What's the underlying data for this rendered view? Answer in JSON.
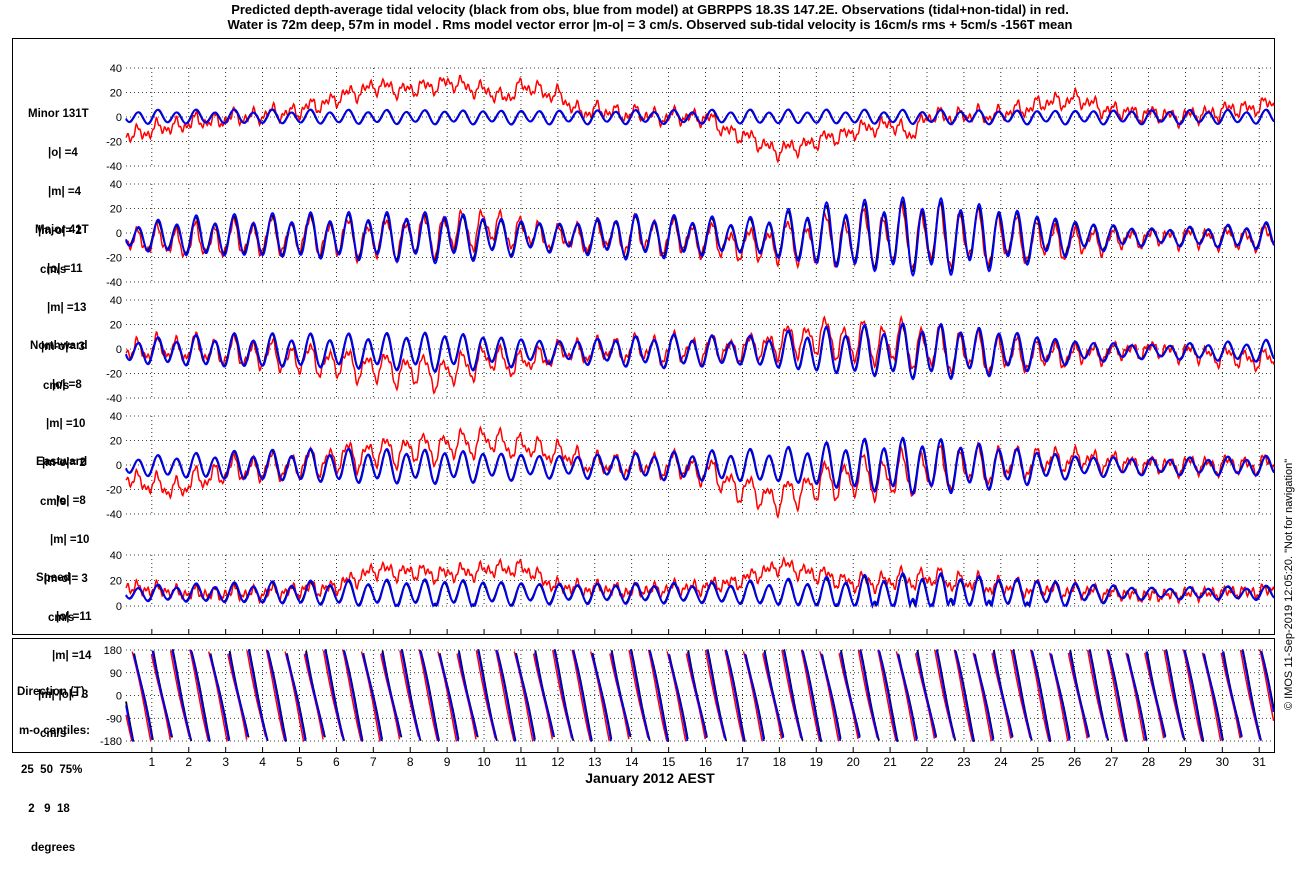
{
  "figure": {
    "title_line1": "Predicted depth-average tidal velocity (black from obs, blue from model) at GBRPPS 18.3S 147.2E. Observations (tidal+non-tidal) in red.",
    "title_line2": "Water is 72m deep, 57m in model . Rms model vector error |m-o| = 3 cm/s. Observed sub-tidal velocity is 16cm/s rms + 5cm/s -156T mean",
    "xlabel": "January 2012 AEST",
    "watermark": "© IMOS 11-Sep-2019 12:05:20. \"Not for navigation\"",
    "colors": {
      "observed": "#ff0000",
      "obs_tidal": "#000000",
      "model": "#0000ff"
    }
  },
  "panels": [
    {
      "id": "minor",
      "label_lines": [
        "Minor 131T",
        "|o| =4",
        "|m| =4",
        "|m-o|= 2",
        "cm/s"
      ]
    },
    {
      "id": "major",
      "label_lines": [
        "Major 41T",
        "|o| =11",
        "|m| =13",
        "|m-o|= 3",
        "cm/s"
      ]
    },
    {
      "id": "north",
      "label_lines": [
        "Northward",
        "|o| =8",
        "|m| =10",
        "|m-o|= 2",
        "cm/s"
      ]
    },
    {
      "id": "east",
      "label_lines": [
        "Eastward",
        "|o| =8",
        "|m| =10",
        "|m-o|= 3",
        "cm/s"
      ]
    },
    {
      "id": "speed",
      "label_lines": [
        "Speed",
        "|o| =11",
        "|m| =14",
        "|m|-|o|= 3",
        "cm/s"
      ]
    },
    {
      "id": "direction",
      "label_lines": [
        "Direction (T)",
        "m-o centiles:",
        "25  50  75%",
        " 2   9  18",
        "degrees"
      ]
    }
  ],
  "chart_data": [
    {
      "type": "line",
      "id": "minor",
      "ylim": [
        -40,
        40
      ],
      "yticks": [
        "-40",
        "-20",
        "0",
        "20",
        "40"
      ],
      "x_label": "January 2012 AEST",
      "xlim": [
        0.3,
        31.4
      ],
      "x_ticks": [
        "1",
        "2",
        "3",
        "4",
        "5",
        "6",
        "7",
        "8",
        "9",
        "10",
        "11",
        "12",
        "13",
        "14",
        "15",
        "16",
        "17",
        "18",
        "19",
        "20",
        "21",
        "22",
        "23",
        "24",
        "25",
        "26",
        "27",
        "28",
        "29",
        "30",
        "31"
      ],
      "tidal": {
        "shape": "semidiurnal",
        "amplitude": [
          [
            0,
            5
          ],
          [
            31,
            5
          ]
        ],
        "bias": 0
      },
      "series": [
        {
          "name": "obs",
          "role": "observed",
          "color": "#ff0000",
          "low_frequency": [
            [
              0.3,
              -15
            ],
            [
              2,
              -5
            ],
            [
              3.5,
              0
            ],
            [
              5,
              5
            ],
            [
              6,
              15
            ],
            [
              7,
              25
            ],
            [
              8,
              22
            ],
            [
              9,
              28
            ],
            [
              10,
              22
            ],
            [
              10.5,
              15
            ],
            [
              11,
              25
            ],
            [
              12,
              18
            ],
            [
              12.5,
              5
            ],
            [
              13,
              5
            ],
            [
              15,
              0
            ],
            [
              16,
              0
            ],
            [
              16.5,
              -10
            ],
            [
              17,
              -15
            ],
            [
              18,
              -28
            ],
            [
              19,
              -20
            ],
            [
              20,
              -12
            ],
            [
              21,
              -5
            ],
            [
              21.5,
              -15
            ],
            [
              22,
              0
            ],
            [
              24,
              2
            ],
            [
              25,
              10
            ],
            [
              26,
              15
            ],
            [
              26.5,
              10
            ],
            [
              27,
              5
            ],
            [
              29,
              0
            ],
            [
              30,
              5
            ],
            [
              31.4,
              10
            ]
          ]
        },
        {
          "name": "obs_tidal",
          "role": "tidal",
          "color": "#000000",
          "tide_scale": 0.95
        },
        {
          "name": "model",
          "role": "tidal",
          "color": "#0000ff",
          "tide_scale": 1.0
        }
      ]
    },
    {
      "type": "line",
      "id": "major",
      "ylim": [
        -40,
        40
      ],
      "yticks": [
        "-40",
        "-20",
        "0",
        "20",
        "40"
      ],
      "tidal": {
        "shape": "semidiurnal",
        "amplitude": [
          [
            0,
            8
          ],
          [
            2,
            14
          ],
          [
            5,
            16
          ],
          [
            9,
            18
          ],
          [
            12,
            10
          ],
          [
            14,
            16
          ],
          [
            16,
            14
          ],
          [
            17,
            12
          ],
          [
            19,
            22
          ],
          [
            22,
            28
          ],
          [
            24,
            22
          ],
          [
            26,
            12
          ],
          [
            28,
            6
          ],
          [
            30,
            8
          ],
          [
            31.4,
            10
          ]
        ],
        "bias": -3
      },
      "series": [
        {
          "name": "obs",
          "role": "observed",
          "color": "#ff0000",
          "low_frequency": [
            [
              0.3,
              -5
            ],
            [
              2,
              -8
            ],
            [
              5,
              -2
            ],
            [
              7,
              -5
            ],
            [
              9,
              0
            ],
            [
              10,
              5
            ],
            [
              11,
              0
            ],
            [
              12,
              -5
            ],
            [
              14,
              -2
            ],
            [
              16,
              -5
            ],
            [
              17,
              -10
            ],
            [
              18,
              -8
            ],
            [
              20,
              -5
            ],
            [
              22,
              -3
            ],
            [
              24,
              -5
            ],
            [
              26,
              -8
            ],
            [
              28,
              -3
            ],
            [
              31.4,
              -5
            ]
          ]
        },
        {
          "name": "obs_tidal",
          "role": "tidal",
          "color": "#000000",
          "tide_scale": 0.9
        },
        {
          "name": "model",
          "role": "tidal",
          "color": "#0000ff",
          "tide_scale": 1.0
        }
      ]
    },
    {
      "type": "line",
      "id": "north",
      "ylim": [
        -40,
        40
      ],
      "yticks": [
        "-40",
        "-20",
        "0",
        "20",
        "40"
      ],
      "tidal": {
        "shape": "semidiurnal",
        "amplitude": [
          [
            0,
            8
          ],
          [
            3,
            12
          ],
          [
            6,
            12
          ],
          [
            9,
            14
          ],
          [
            12,
            8
          ],
          [
            15,
            12
          ],
          [
            17,
            10
          ],
          [
            19,
            16
          ],
          [
            22,
            20
          ],
          [
            24,
            16
          ],
          [
            26,
            8
          ],
          [
            28,
            5
          ],
          [
            31.4,
            8
          ]
        ],
        "bias": -2
      },
      "series": [
        {
          "name": "obs",
          "role": "observed",
          "color": "#ff0000",
          "low_frequency": [
            [
              0.3,
              0
            ],
            [
              2,
              0
            ],
            [
              5,
              -8
            ],
            [
              7,
              -15
            ],
            [
              9,
              -20
            ],
            [
              10,
              -8
            ],
            [
              11,
              -12
            ],
            [
              12,
              -3
            ],
            [
              14,
              0
            ],
            [
              17,
              0
            ],
            [
              18,
              5
            ],
            [
              19,
              10
            ],
            [
              20,
              5
            ],
            [
              21,
              5
            ],
            [
              22,
              0
            ],
            [
              24,
              -5
            ],
            [
              26,
              -5
            ],
            [
              28,
              0
            ],
            [
              31.4,
              -10
            ]
          ]
        },
        {
          "name": "obs_tidal",
          "role": "tidal",
          "color": "#000000",
          "tide_scale": 0.95
        },
        {
          "name": "model",
          "role": "tidal",
          "color": "#0000ff",
          "tide_scale": 1.0
        }
      ]
    },
    {
      "type": "line",
      "id": "east",
      "ylim": [
        -40,
        40
      ],
      "yticks": [
        "-40",
        "-20",
        "0",
        "20",
        "40"
      ],
      "tidal": {
        "shape": "semidiurnal",
        "amplitude": [
          [
            0,
            6
          ],
          [
            3,
            10
          ],
          [
            6,
            12
          ],
          [
            9,
            12
          ],
          [
            12,
            8
          ],
          [
            15,
            10
          ],
          [
            18,
            12
          ],
          [
            20,
            18
          ],
          [
            22,
            20
          ],
          [
            24,
            15
          ],
          [
            26,
            8
          ],
          [
            28,
            6
          ],
          [
            31.4,
            7
          ]
        ],
        "bias": -1
      },
      "series": [
        {
          "name": "obs",
          "role": "observed",
          "color": "#ff0000",
          "low_frequency": [
            [
              0.3,
              -10
            ],
            [
              1.5,
              -20
            ],
            [
              3,
              -5
            ],
            [
              5,
              0
            ],
            [
              7,
              10
            ],
            [
              9,
              15
            ],
            [
              10,
              20
            ],
            [
              11,
              15
            ],
            [
              12,
              10
            ],
            [
              13,
              0
            ],
            [
              15,
              0
            ],
            [
              16,
              -5
            ],
            [
              17,
              -20
            ],
            [
              18,
              -28
            ],
            [
              19,
              -15
            ],
            [
              20,
              -10
            ],
            [
              21,
              -10
            ],
            [
              22,
              -5
            ],
            [
              24,
              0
            ],
            [
              26,
              5
            ],
            [
              28,
              0
            ],
            [
              31.4,
              0
            ]
          ]
        },
        {
          "name": "obs_tidal",
          "role": "tidal",
          "color": "#000000",
          "tide_scale": 0.95
        },
        {
          "name": "model",
          "role": "tidal",
          "color": "#0000ff",
          "tide_scale": 1.0
        }
      ]
    },
    {
      "type": "line",
      "id": "speed",
      "ylim": [
        0,
        40
      ],
      "yticks": [
        "0",
        "20",
        "40"
      ],
      "tidal": {
        "shape": "semidiurnal",
        "amplitude": [
          [
            0,
            5
          ],
          [
            5,
            8
          ],
          [
            9,
            10
          ],
          [
            12,
            7
          ],
          [
            16,
            7
          ],
          [
            19,
            10
          ],
          [
            22,
            14
          ],
          [
            25,
            10
          ],
          [
            28,
            4
          ],
          [
            31.4,
            5
          ]
        ],
        "bias": 10
      },
      "series": [
        {
          "name": "obs",
          "role": "observed",
          "color": "#ff0000",
          "low_frequency": [
            [
              0.3,
              15
            ],
            [
              2,
              10
            ],
            [
              4,
              10
            ],
            [
              6,
              15
            ],
            [
              7,
              28
            ],
            [
              9,
              25
            ],
            [
              10,
              28
            ],
            [
              11,
              30
            ],
            [
              12,
              15
            ],
            [
              14,
              12
            ],
            [
              16,
              15
            ],
            [
              17,
              20
            ],
            [
              18,
              32
            ],
            [
              19,
              25
            ],
            [
              20,
              18
            ],
            [
              22,
              22
            ],
            [
              24,
              15
            ],
            [
              26,
              12
            ],
            [
              28,
              8
            ],
            [
              31.4,
              12
            ]
          ]
        },
        {
          "name": "obs_tidal",
          "role": "tidal",
          "color": "#000000",
          "tide_scale": 0.9
        },
        {
          "name": "model",
          "role": "tidal",
          "color": "#0000ff",
          "tide_scale": 1.0
        }
      ]
    },
    {
      "type": "line",
      "id": "direction",
      "ylim": [
        -180,
        180
      ],
      "yticks": [
        "-180",
        "-90",
        "0",
        "90",
        "180"
      ],
      "tidal": {
        "shape": "direction-wrap",
        "amplitude": [
          [
            0,
            1
          ],
          [
            31.4,
            1
          ]
        ],
        "bias": 0
      },
      "series": [
        {
          "name": "obs",
          "role": "direction-observed",
          "color": "#ff0000"
        },
        {
          "name": "obs_tidal",
          "role": "direction-tidal",
          "color": "#000000"
        },
        {
          "name": "model",
          "role": "direction-tidal",
          "color": "#0000ff"
        }
      ]
    }
  ]
}
